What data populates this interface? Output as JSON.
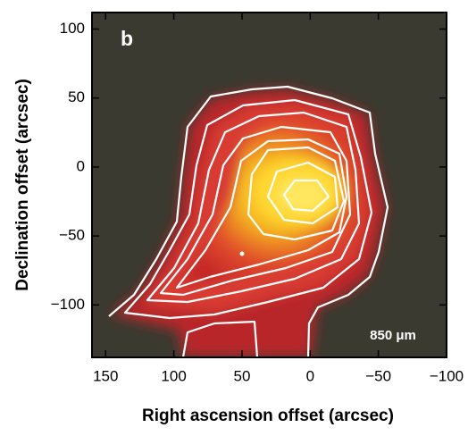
{
  "chart_data": {
    "type": "image",
    "panel_label": "b",
    "annotation": "850 μm",
    "x_label": "Right ascension offset (arcsec)",
    "y_label": "Declination offset (arcsec)",
    "xlim": [
      160,
      -100
    ],
    "ylim": [
      -138,
      112
    ],
    "xticks": [
      150,
      100,
      50,
      0,
      {
        "value": -50,
        "label": "−50"
      },
      {
        "value": -100,
        "label": "−100"
      }
    ],
    "yticks": [
      100,
      50,
      0,
      {
        "value": -50,
        "label": "−50"
      },
      {
        "value": -100,
        "label": "−100"
      }
    ]
  }
}
